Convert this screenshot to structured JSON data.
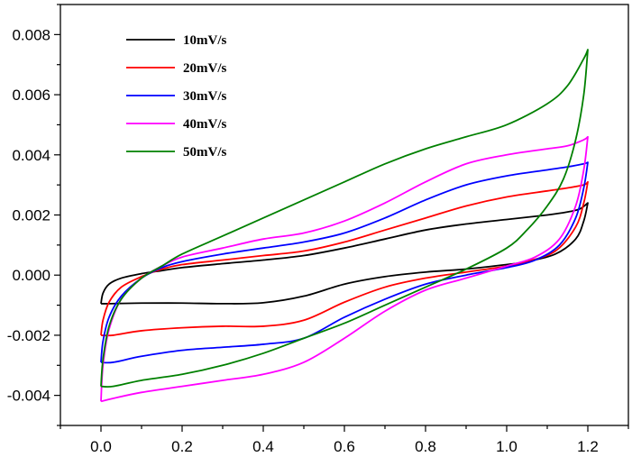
{
  "chart_data": {
    "type": "line",
    "title": "",
    "xlabel": "",
    "ylabel": "",
    "xlim": [
      -0.1,
      1.3
    ],
    "ylim": [
      -0.005,
      0.009
    ],
    "x_ticks": [
      "0.0",
      "0.2",
      "0.4",
      "0.6",
      "0.8",
      "1.0",
      "1.2"
    ],
    "y_ticks": [
      "-0.004",
      "-0.002",
      "0.000",
      "0.002",
      "0.004",
      "0.006",
      "0.008"
    ],
    "grid": false,
    "legend_position": "top-left",
    "series": [
      {
        "name": "10mV/s",
        "color": "#000000",
        "forward": [
          [
            0.0,
            -0.00095
          ],
          [
            0.005,
            -0.0006
          ],
          [
            0.02,
            -0.0003
          ],
          [
            0.05,
            -0.0001
          ],
          [
            0.1,
            5e-05
          ],
          [
            0.15,
            0.00015
          ],
          [
            0.2,
            0.00025
          ],
          [
            0.3,
            0.00038
          ],
          [
            0.4,
            0.0005
          ],
          [
            0.5,
            0.00065
          ],
          [
            0.6,
            0.0009
          ],
          [
            0.7,
            0.0012
          ],
          [
            0.8,
            0.0015
          ],
          [
            0.9,
            0.0017
          ],
          [
            1.0,
            0.00185
          ],
          [
            1.1,
            0.002
          ],
          [
            1.15,
            0.0021
          ],
          [
            1.18,
            0.0022
          ],
          [
            1.2,
            0.0024
          ]
        ],
        "reverse": [
          [
            1.2,
            0.0024
          ],
          [
            1.19,
            0.0018
          ],
          [
            1.17,
            0.0012
          ],
          [
            1.12,
            0.0007
          ],
          [
            1.05,
            0.00045
          ],
          [
            1.0,
            0.00035
          ],
          [
            0.9,
            0.0002
          ],
          [
            0.8,
            0.0001
          ],
          [
            0.7,
            -5e-05
          ],
          [
            0.6,
            -0.0003
          ],
          [
            0.5,
            -0.0007
          ],
          [
            0.4,
            -0.00092
          ],
          [
            0.3,
            -0.00095
          ],
          [
            0.2,
            -0.00093
          ],
          [
            0.1,
            -0.00093
          ],
          [
            0.02,
            -0.00095
          ],
          [
            0.0,
            -0.00095
          ]
        ]
      },
      {
        "name": "20mV/s",
        "color": "#ff0000",
        "forward": [
          [
            0.0,
            -0.002
          ],
          [
            0.005,
            -0.0015
          ],
          [
            0.02,
            -0.0009
          ],
          [
            0.05,
            -0.0004
          ],
          [
            0.1,
            -5e-05
          ],
          [
            0.15,
            0.0002
          ],
          [
            0.2,
            0.00035
          ],
          [
            0.3,
            0.0005
          ],
          [
            0.4,
            0.00065
          ],
          [
            0.5,
            0.0008
          ],
          [
            0.6,
            0.0011
          ],
          [
            0.7,
            0.0015
          ],
          [
            0.8,
            0.0019
          ],
          [
            0.9,
            0.0023
          ],
          [
            1.0,
            0.0026
          ],
          [
            1.1,
            0.0028
          ],
          [
            1.15,
            0.0029
          ],
          [
            1.19,
            0.003
          ],
          [
            1.2,
            0.0031
          ]
        ],
        "reverse": [
          [
            1.2,
            0.0031
          ],
          [
            1.19,
            0.0024
          ],
          [
            1.17,
            0.0016
          ],
          [
            1.12,
            0.0008
          ],
          [
            1.05,
            0.00045
          ],
          [
            1.0,
            0.0003
          ],
          [
            0.9,
            0.0001
          ],
          [
            0.8,
            -0.0001
          ],
          [
            0.7,
            -0.0004
          ],
          [
            0.6,
            -0.0009
          ],
          [
            0.5,
            -0.0015
          ],
          [
            0.4,
            -0.0017
          ],
          [
            0.3,
            -0.0017
          ],
          [
            0.2,
            -0.00175
          ],
          [
            0.1,
            -0.00185
          ],
          [
            0.03,
            -0.002
          ],
          [
            0.0,
            -0.002
          ]
        ]
      },
      {
        "name": "30mV/s",
        "color": "#0000ff",
        "forward": [
          [
            0.0,
            -0.0029
          ],
          [
            0.005,
            -0.0022
          ],
          [
            0.02,
            -0.0014
          ],
          [
            0.05,
            -0.0007
          ],
          [
            0.1,
            -0.0001
          ],
          [
            0.15,
            0.00025
          ],
          [
            0.2,
            0.00045
          ],
          [
            0.3,
            0.0007
          ],
          [
            0.4,
            0.0009
          ],
          [
            0.5,
            0.0011
          ],
          [
            0.6,
            0.0014
          ],
          [
            0.7,
            0.0019
          ],
          [
            0.8,
            0.0025
          ],
          [
            0.9,
            0.003
          ],
          [
            1.0,
            0.0033
          ],
          [
            1.1,
            0.0035
          ],
          [
            1.15,
            0.0036
          ],
          [
            1.19,
            0.0037
          ],
          [
            1.2,
            0.00375
          ]
        ],
        "reverse": [
          [
            1.2,
            0.00375
          ],
          [
            1.19,
            0.0029
          ],
          [
            1.17,
            0.0019
          ],
          [
            1.13,
            0.001
          ],
          [
            1.07,
            0.0005
          ],
          [
            1.0,
            0.00025
          ],
          [
            0.9,
            0.0
          ],
          [
            0.8,
            -0.0003
          ],
          [
            0.7,
            -0.0008
          ],
          [
            0.6,
            -0.0014
          ],
          [
            0.5,
            -0.0021
          ],
          [
            0.4,
            -0.0023
          ],
          [
            0.3,
            -0.0024
          ],
          [
            0.2,
            -0.0025
          ],
          [
            0.1,
            -0.0027
          ],
          [
            0.03,
            -0.0029
          ],
          [
            0.0,
            -0.0029
          ]
        ]
      },
      {
        "name": "40mV/s",
        "color": "#ff00ff",
        "forward": [
          [
            0.0,
            -0.0042
          ],
          [
            0.005,
            -0.003
          ],
          [
            0.02,
            -0.0018
          ],
          [
            0.05,
            -0.0008
          ],
          [
            0.1,
            -0.0001
          ],
          [
            0.15,
            0.0003
          ],
          [
            0.2,
            0.0006
          ],
          [
            0.3,
            0.0009
          ],
          [
            0.4,
            0.0012
          ],
          [
            0.5,
            0.0014
          ],
          [
            0.6,
            0.0018
          ],
          [
            0.7,
            0.0024
          ],
          [
            0.8,
            0.0031
          ],
          [
            0.9,
            0.0037
          ],
          [
            1.0,
            0.004
          ],
          [
            1.1,
            0.0042
          ],
          [
            1.15,
            0.0043
          ],
          [
            1.19,
            0.0045
          ],
          [
            1.2,
            0.0046
          ]
        ],
        "reverse": [
          [
            1.2,
            0.0046
          ],
          [
            1.19,
            0.0035
          ],
          [
            1.17,
            0.0023
          ],
          [
            1.13,
            0.0012
          ],
          [
            1.07,
            0.0006
          ],
          [
            1.0,
            0.0003
          ],
          [
            0.9,
            -0.0001
          ],
          [
            0.8,
            -0.0005
          ],
          [
            0.7,
            -0.0012
          ],
          [
            0.6,
            -0.0021
          ],
          [
            0.5,
            -0.0029
          ],
          [
            0.4,
            -0.0033
          ],
          [
            0.3,
            -0.0035
          ],
          [
            0.2,
            -0.0037
          ],
          [
            0.1,
            -0.0039
          ],
          [
            0.03,
            -0.0041
          ],
          [
            0.0,
            -0.0042
          ]
        ]
      },
      {
        "name": "50mV/s",
        "color": "#008000",
        "forward": [
          [
            0.0,
            -0.0037
          ],
          [
            0.005,
            -0.0028
          ],
          [
            0.02,
            -0.0017
          ],
          [
            0.05,
            -0.0008
          ],
          [
            0.1,
            -0.0001
          ],
          [
            0.15,
            0.0003
          ],
          [
            0.2,
            0.0007
          ],
          [
            0.3,
            0.0013
          ],
          [
            0.4,
            0.0019
          ],
          [
            0.5,
            0.0025
          ],
          [
            0.6,
            0.0031
          ],
          [
            0.7,
            0.0037
          ],
          [
            0.8,
            0.0042
          ],
          [
            0.9,
            0.0046
          ],
          [
            1.0,
            0.005
          ],
          [
            1.1,
            0.0057
          ],
          [
            1.15,
            0.0063
          ],
          [
            1.19,
            0.0072
          ],
          [
            1.2,
            0.0075
          ]
        ],
        "reverse": [
          [
            1.2,
            0.0075
          ],
          [
            1.19,
            0.006
          ],
          [
            1.17,
            0.0045
          ],
          [
            1.14,
            0.0032
          ],
          [
            1.1,
            0.0023
          ],
          [
            1.05,
            0.0015
          ],
          [
            1.0,
            0.0009
          ],
          [
            0.9,
            0.0002
          ],
          [
            0.8,
            -0.0004
          ],
          [
            0.7,
            -0.001
          ],
          [
            0.6,
            -0.0016
          ],
          [
            0.5,
            -0.0021
          ],
          [
            0.4,
            -0.0026
          ],
          [
            0.3,
            -0.003
          ],
          [
            0.2,
            -0.0033
          ],
          [
            0.1,
            -0.0035
          ],
          [
            0.03,
            -0.0037
          ],
          [
            0.0,
            -0.0037
          ]
        ]
      }
    ]
  }
}
